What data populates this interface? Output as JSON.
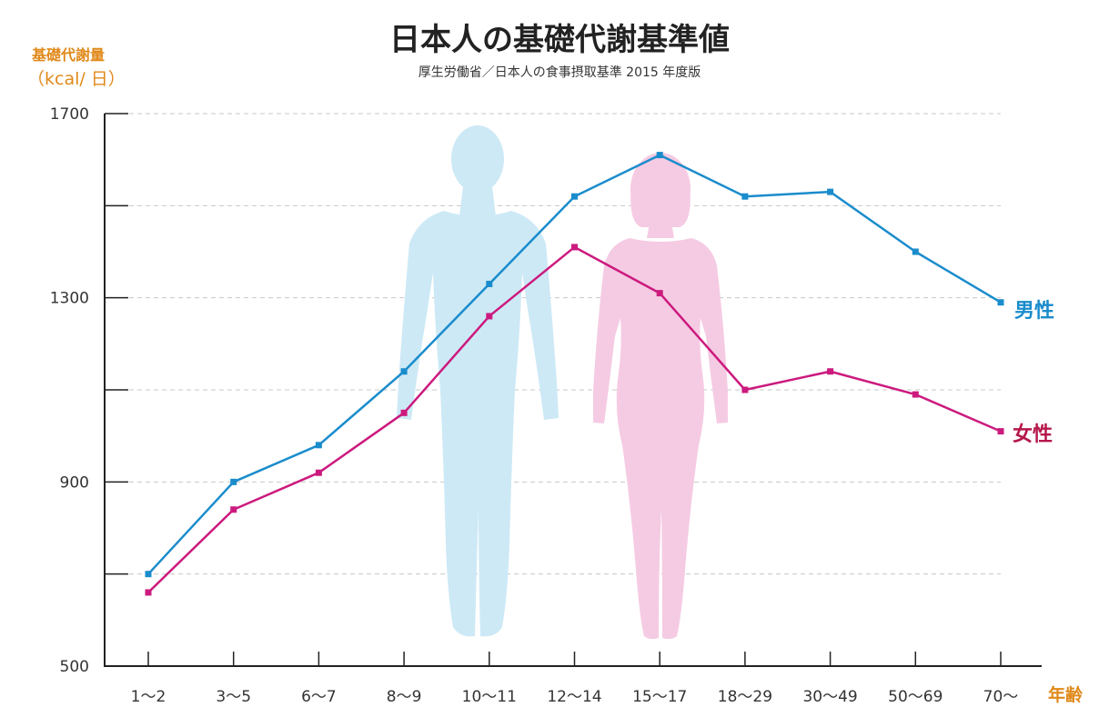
{
  "chart_data": {
    "type": "line",
    "title": "日本人の基礎代謝基準値",
    "subtitle": "厚生労働省／日本人の食事摂取基準 2015 年度版",
    "ylabel": "基礎代謝量",
    "ylabel_unit": "（kcal/ 日）",
    "xlabel": "年齢",
    "ylim": [
      500,
      1700
    ],
    "yticks": [
      500,
      900,
      1300,
      1700
    ],
    "grid": true,
    "categories": [
      "1～2",
      "3～5",
      "6～7",
      "8～9",
      "10～11",
      "12～14",
      "15～17",
      "18～29",
      "30～49",
      "50～69",
      "70～"
    ],
    "series": [
      {
        "name": "男性",
        "color": "#1a8ccc",
        "values": [
          700,
          900,
          980,
          1140,
          1330,
          1520,
          1610,
          1520,
          1530,
          1400,
          1290
        ]
      },
      {
        "name": "女性",
        "color": "#cc1a7e",
        "label_color": "#b5174a",
        "values": [
          660,
          840,
          920,
          1050,
          1260,
          1410,
          1310,
          1100,
          1140,
          1090,
          1010
        ]
      }
    ],
    "colors": {
      "male_silhouette": "#cde9f6",
      "female_silhouette": "#f5cbe3",
      "axis": "#222222",
      "grid": "#c8c8c8",
      "accent": "#e0891a"
    },
    "icons": [
      "male-silhouette-icon",
      "female-silhouette-icon"
    ]
  }
}
